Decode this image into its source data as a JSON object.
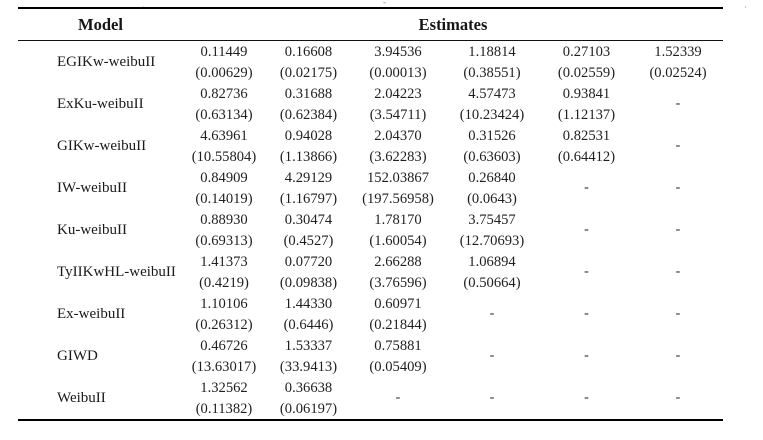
{
  "page": {
    "background": "#ffffff",
    "text_color": "#1f1f1f",
    "rule_color": "#000000"
  },
  "artifacts": {
    "mark1": "ˏ",
    "mark2": "-",
    "mark3": "ˏ"
  },
  "table": {
    "header": {
      "model": "Model",
      "estimates": "Estimates"
    },
    "empty_cell": "-",
    "rows": [
      {
        "model": "EGIKw-weibuII",
        "cells": [
          [
            "0.11449",
            "(0.00629)"
          ],
          [
            "0.16608",
            "(0.02175)"
          ],
          [
            "3.94536",
            "(0.00013)"
          ],
          [
            "1.18814",
            "(0.38551)"
          ],
          [
            "0.27103",
            "(0.02559)"
          ],
          [
            "1.52339",
            "(0.02524)"
          ]
        ]
      },
      {
        "model": "ExKu-weibuII",
        "cells": [
          [
            "0.82736",
            "(0.63134)"
          ],
          [
            "0.31688",
            "(0.62384)"
          ],
          [
            "2.04223",
            "(3.54711)"
          ],
          [
            "4.57473",
            "(10.23424)"
          ],
          [
            "0.93841",
            "(1.12137)"
          ],
          null
        ]
      },
      {
        "model": "GIKw-weibuII",
        "cells": [
          [
            "4.63961",
            "(10.55804)"
          ],
          [
            "0.94028",
            "(1.13866)"
          ],
          [
            "2.04370",
            "(3.62283)"
          ],
          [
            "0.31526",
            "(0.63603)"
          ],
          [
            "0.82531",
            "(0.64412)"
          ],
          null
        ]
      },
      {
        "model": "IW-weibuII",
        "cells": [
          [
            "0.84909",
            "(0.14019)"
          ],
          [
            "4.29129",
            "(1.16797)"
          ],
          [
            "152.03867",
            "(197.56958)"
          ],
          [
            "0.26840",
            "(0.0643)"
          ],
          null,
          null
        ]
      },
      {
        "model": "Ku-weibuII",
        "cells": [
          [
            "0.88930",
            "(0.69313)"
          ],
          [
            "0.30474",
            "(0.4527)"
          ],
          [
            "1.78170",
            "(1.60054)"
          ],
          [
            "3.75457",
            "(12.70693)"
          ],
          null,
          null
        ]
      },
      {
        "model": "TyIIKwHL-weibuII",
        "cells": [
          [
            "1.41373",
            "(0.4219)"
          ],
          [
            "0.07720",
            "(0.09838)"
          ],
          [
            "2.66288",
            "(3.76596)"
          ],
          [
            "1.06894",
            "(0.50664)"
          ],
          null,
          null
        ]
      },
      {
        "model": "Ex-weibuII",
        "cells": [
          [
            "1.10106",
            "(0.26312)"
          ],
          [
            "1.44330",
            "(0.6446)"
          ],
          [
            "0.60971",
            "(0.21844)"
          ],
          null,
          null,
          null
        ]
      },
      {
        "model": "GIWD",
        "cells": [
          [
            "0.46726",
            "(13.63017)"
          ],
          [
            "1.53337",
            "(33.9413)"
          ],
          [
            "0.75881",
            "(0.05409)"
          ],
          null,
          null,
          null
        ]
      },
      {
        "model": "WeibuII",
        "cells": [
          [
            "1.32562",
            "(0.11382)"
          ],
          [
            "0.36638",
            "(0.06197)"
          ],
          null,
          null,
          null,
          null
        ]
      }
    ]
  }
}
